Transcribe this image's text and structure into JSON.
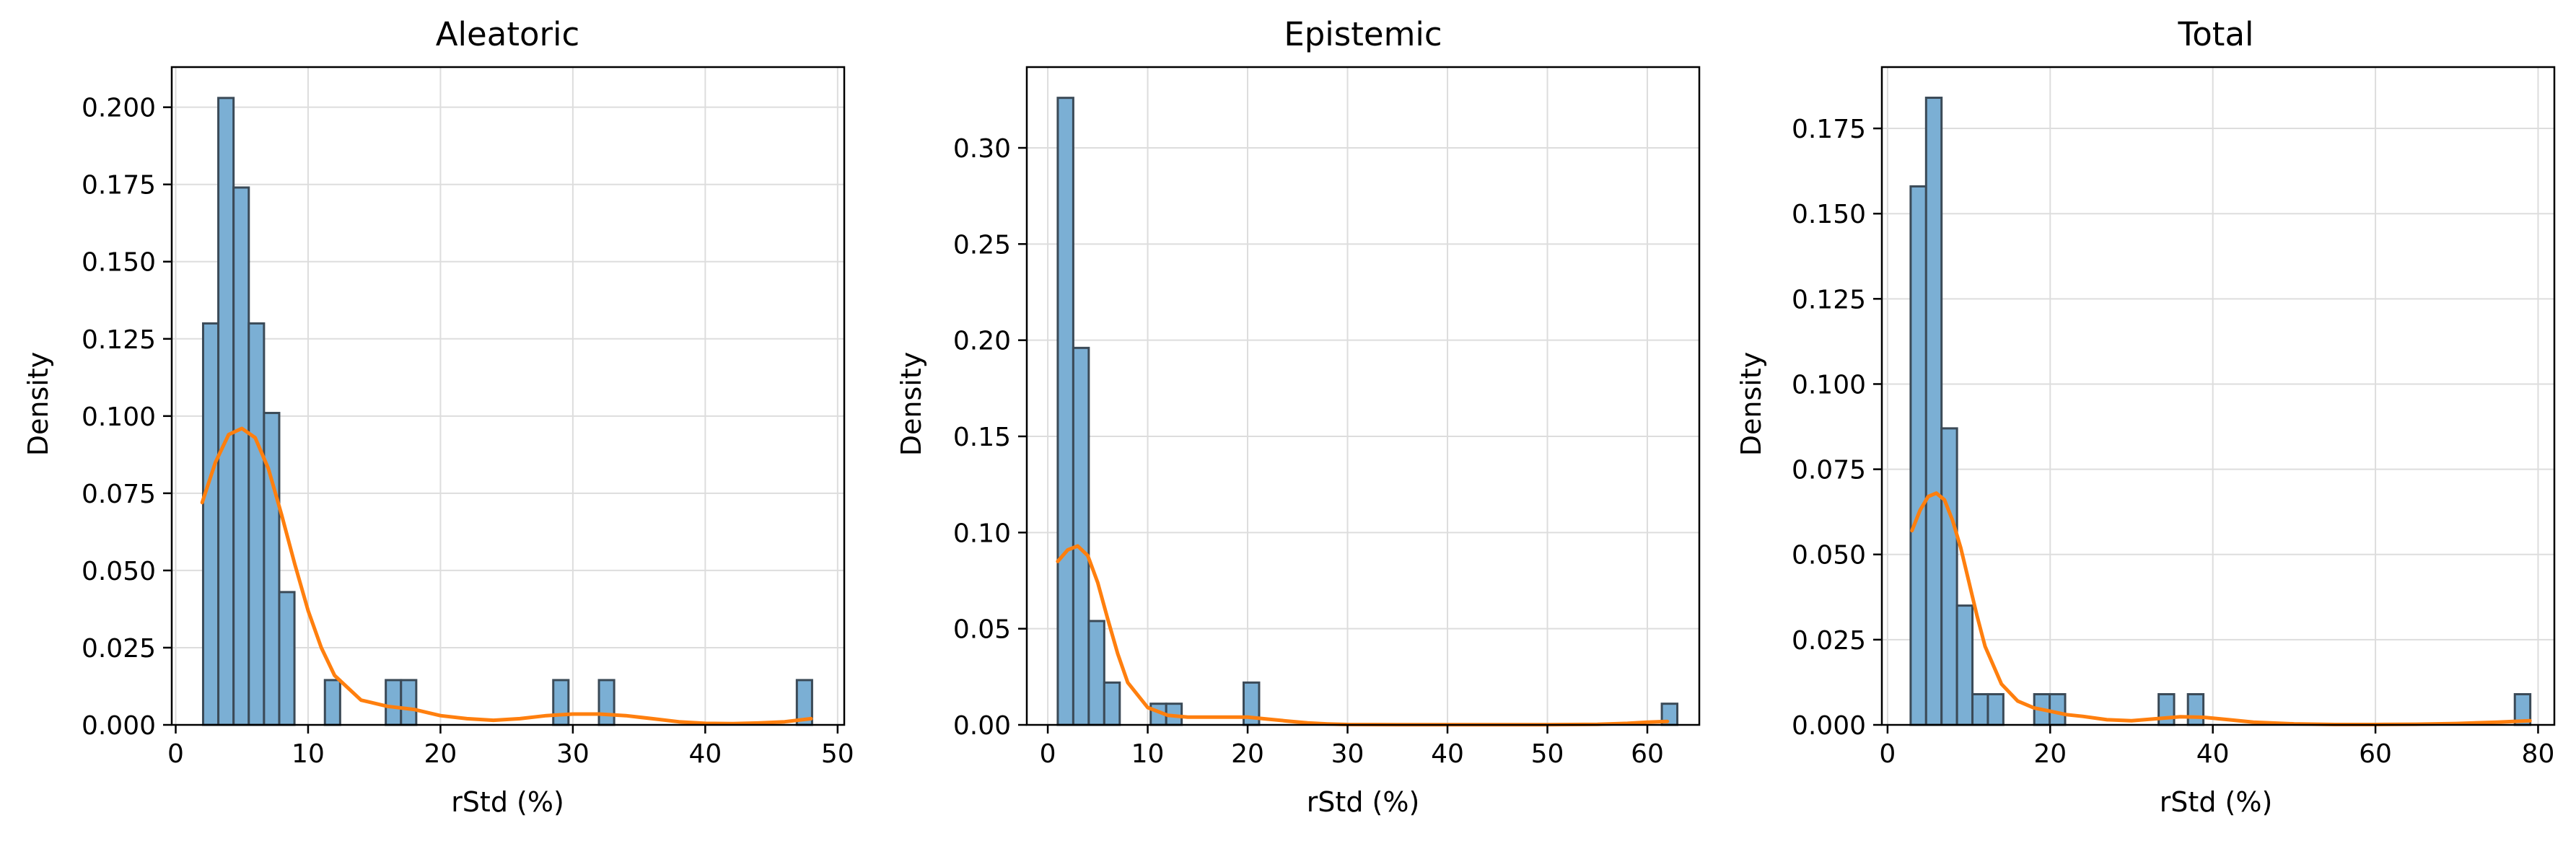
{
  "chart_data": [
    {
      "type": "bar",
      "title": "Aleatoric",
      "xlabel": "rStd (%)",
      "ylabel": "Density",
      "xlim": [
        -0.3,
        50.5
      ],
      "ylim": [
        0,
        0.213
      ],
      "xticks": [
        0,
        10,
        20,
        30,
        40,
        50
      ],
      "yticks": [
        0.0,
        0.025,
        0.05,
        0.075,
        0.1,
        0.125,
        0.15,
        0.175,
        0.2
      ],
      "ytick_labels": [
        "0.000",
        "0.025",
        "0.050",
        "0.075",
        "0.100",
        "0.125",
        "0.150",
        "0.175",
        "0.200"
      ],
      "grid": true,
      "bar_color": "#7bafd4",
      "edge_color": "#3b4a57",
      "kde_color": "#ff7f0e",
      "bins": [
        {
          "x0": 2.07,
          "x1": 3.22,
          "density": 0.13
        },
        {
          "x0": 3.22,
          "x1": 4.37,
          "density": 0.203
        },
        {
          "x0": 4.37,
          "x1": 5.52,
          "density": 0.174
        },
        {
          "x0": 5.52,
          "x1": 6.67,
          "density": 0.13
        },
        {
          "x0": 6.67,
          "x1": 7.82,
          "density": 0.101
        },
        {
          "x0": 7.82,
          "x1": 8.97,
          "density": 0.043
        },
        {
          "x0": 11.27,
          "x1": 12.42,
          "density": 0.0145
        },
        {
          "x0": 15.87,
          "x1": 17.02,
          "density": 0.0145
        },
        {
          "x0": 17.02,
          "x1": 18.17,
          "density": 0.0145
        },
        {
          "x0": 28.52,
          "x1": 29.67,
          "density": 0.0145
        },
        {
          "x0": 31.97,
          "x1": 33.12,
          "density": 0.0145
        },
        {
          "x0": 46.92,
          "x1": 48.07,
          "density": 0.0145
        }
      ],
      "kde": {
        "x": [
          2.0,
          3.0,
          4.0,
          5.0,
          6.0,
          7.0,
          8.0,
          9.0,
          10.0,
          11.0,
          12.0,
          14.0,
          16.0,
          18.0,
          20.0,
          22.0,
          24.0,
          26.0,
          28.0,
          30.0,
          32.0,
          34.0,
          36.0,
          38.0,
          40.0,
          42.0,
          44.0,
          46.0,
          48.0
        ],
        "y": [
          0.072,
          0.085,
          0.094,
          0.096,
          0.093,
          0.083,
          0.068,
          0.052,
          0.037,
          0.025,
          0.016,
          0.008,
          0.006,
          0.005,
          0.003,
          0.002,
          0.0015,
          0.002,
          0.003,
          0.0035,
          0.0035,
          0.003,
          0.002,
          0.001,
          0.0005,
          0.0004,
          0.0006,
          0.001,
          0.002
        ]
      }
    },
    {
      "type": "bar",
      "title": "Epistemic",
      "xlabel": "rStd (%)",
      "ylabel": "Density",
      "xlim": [
        -2.1,
        65.2
      ],
      "ylim": [
        0,
        0.342
      ],
      "xticks": [
        0,
        10,
        20,
        30,
        40,
        50,
        60
      ],
      "yticks": [
        0.0,
        0.05,
        0.1,
        0.15,
        0.2,
        0.25,
        0.3
      ],
      "ytick_labels": [
        "0.00",
        "0.05",
        "0.10",
        "0.15",
        "0.20",
        "0.25",
        "0.30"
      ],
      "grid": true,
      "bar_color": "#7bafd4",
      "edge_color": "#3b4a57",
      "kde_color": "#ff7f0e",
      "bins": [
        {
          "x0": 1.0,
          "x1": 2.55,
          "density": 0.326
        },
        {
          "x0": 2.55,
          "x1": 4.1,
          "density": 0.196
        },
        {
          "x0": 4.1,
          "x1": 5.65,
          "density": 0.054
        },
        {
          "x0": 5.65,
          "x1": 7.2,
          "density": 0.022
        },
        {
          "x0": 10.3,
          "x1": 11.85,
          "density": 0.011
        },
        {
          "x0": 11.85,
          "x1": 13.4,
          "density": 0.011
        },
        {
          "x0": 19.6,
          "x1": 21.15,
          "density": 0.022
        },
        {
          "x0": 61.45,
          "x1": 63.0,
          "density": 0.011
        }
      ],
      "kde": {
        "x": [
          1.0,
          2.0,
          3.0,
          4.0,
          5.0,
          6.0,
          7.0,
          8.0,
          10.0,
          12.0,
          14.0,
          16.0,
          18.0,
          20.0,
          22.0,
          24.0,
          26.0,
          28.0,
          30.0,
          35.0,
          40.0,
          45.0,
          50.0,
          55.0,
          58.0,
          60.0,
          62.0
        ],
        "y": [
          0.085,
          0.091,
          0.093,
          0.088,
          0.074,
          0.055,
          0.037,
          0.022,
          0.009,
          0.005,
          0.004,
          0.004,
          0.004,
          0.004,
          0.003,
          0.002,
          0.001,
          0.0005,
          0.0002,
          0.0001,
          0.0001,
          0.0001,
          0.0001,
          0.0003,
          0.0008,
          0.0014,
          0.0018
        ]
      }
    },
    {
      "type": "bar",
      "title": "Total",
      "xlabel": "rStd (%)",
      "ylabel": "Density",
      "xlim": [
        -0.7,
        82.0
      ],
      "ylim": [
        0,
        0.193
      ],
      "xticks": [
        0,
        20,
        40,
        60,
        80
      ],
      "yticks": [
        0.0,
        0.025,
        0.05,
        0.075,
        0.1,
        0.125,
        0.15,
        0.175
      ],
      "ytick_labels": [
        "0.000",
        "0.025",
        "0.050",
        "0.075",
        "0.100",
        "0.125",
        "0.150",
        "0.175"
      ],
      "grid": true,
      "bar_color": "#7bafd4",
      "edge_color": "#3b4a57",
      "kde_color": "#ff7f0e",
      "bins": [
        {
          "x0": 2.84,
          "x1": 4.74,
          "density": 0.158
        },
        {
          "x0": 4.74,
          "x1": 6.64,
          "density": 0.184
        },
        {
          "x0": 6.64,
          "x1": 8.54,
          "density": 0.087
        },
        {
          "x0": 8.54,
          "x1": 10.44,
          "density": 0.035
        },
        {
          "x0": 10.44,
          "x1": 12.34,
          "density": 0.009
        },
        {
          "x0": 12.34,
          "x1": 14.24,
          "density": 0.009
        },
        {
          "x0": 18.04,
          "x1": 19.94,
          "density": 0.009
        },
        {
          "x0": 19.94,
          "x1": 21.84,
          "density": 0.009
        },
        {
          "x0": 33.34,
          "x1": 35.24,
          "density": 0.009
        },
        {
          "x0": 36.94,
          "x1": 38.84,
          "density": 0.009
        },
        {
          "x0": 77.14,
          "x1": 79.04,
          "density": 0.009
        }
      ],
      "kde": {
        "x": [
          3.0,
          4.0,
          5.0,
          6.0,
          7.0,
          8.0,
          9.0,
          10.0,
          11.0,
          12.0,
          14.0,
          16.0,
          18.0,
          20.0,
          22.0,
          24.0,
          27.0,
          30.0,
          33.0,
          36.0,
          39.0,
          42.0,
          45.0,
          50.0,
          55.0,
          60.0,
          65.0,
          70.0,
          75.0,
          79.0
        ],
        "y": [
          0.057,
          0.063,
          0.067,
          0.068,
          0.066,
          0.06,
          0.052,
          0.042,
          0.032,
          0.023,
          0.012,
          0.007,
          0.005,
          0.004,
          0.003,
          0.0025,
          0.0015,
          0.0012,
          0.0018,
          0.0024,
          0.0022,
          0.0015,
          0.0008,
          0.0003,
          0.0001,
          0.0001,
          0.0002,
          0.0004,
          0.0008,
          0.0012
        ]
      }
    }
  ]
}
